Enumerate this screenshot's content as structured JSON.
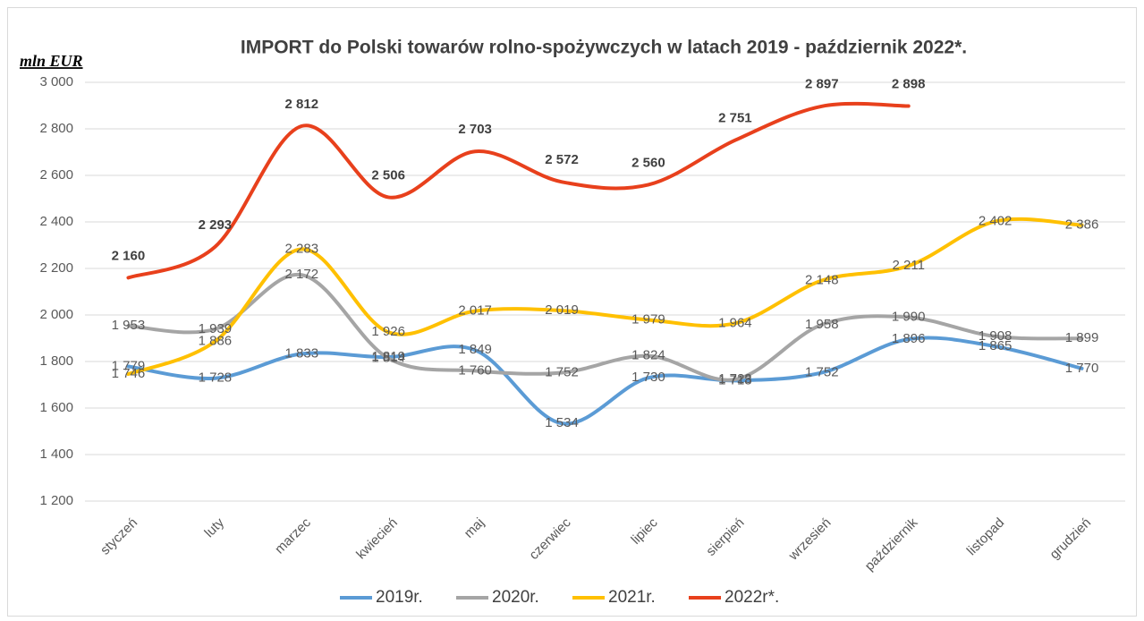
{
  "chart_data": {
    "type": "line",
    "title": "IMPORT do Polski towarów rolno-spożywczych w latach 2019 - październik 2022*.",
    "y_axis_label": "mln EUR",
    "categories": [
      "styczeń",
      "luty",
      "marzec",
      "kwiecień",
      "maj",
      "czerwiec",
      "lipiec",
      "sierpień",
      "wrzesień",
      "październik",
      "listopad",
      "grudzień"
    ],
    "ylim": [
      1200,
      3000
    ],
    "yticks": [
      {
        "value": 1200,
        "label": "1 200"
      },
      {
        "value": 1400,
        "label": "1 400"
      },
      {
        "value": 1600,
        "label": "1 600"
      },
      {
        "value": 1800,
        "label": "1 800"
      },
      {
        "value": 2000,
        "label": "2 000"
      },
      {
        "value": 2200,
        "label": "2 200"
      },
      {
        "value": 2400,
        "label": "2 400"
      },
      {
        "value": 2600,
        "label": "2 600"
      },
      {
        "value": 2800,
        "label": "2 800"
      },
      {
        "value": 3000,
        "label": "3 000"
      }
    ],
    "grid": true,
    "legend": "bottom",
    "series": [
      {
        "name": "2019r.",
        "color": "#5b9bd5",
        "values": [
          1779,
          1728,
          1833,
          1819,
          1849,
          1534,
          1730,
          1718,
          1752,
          1896,
          1865,
          1770
        ],
        "value_labels": [
          "1 779",
          "1 728",
          "1 833",
          "1 819",
          "1 849",
          "1 534",
          "1 730",
          "1 718",
          "1 752",
          "1 896",
          "1 865",
          "1 770"
        ]
      },
      {
        "name": "2020r.",
        "color": "#a5a5a5",
        "values": [
          1953,
          1939,
          2172,
          1814,
          1760,
          1752,
          1824,
          1723,
          1958,
          1990,
          1908,
          1899
        ],
        "value_labels": [
          "1 953",
          "1 939",
          "2 172",
          "1 814",
          "1 760",
          "1 752",
          "1 824",
          "1 723",
          "1 958",
          "1 990",
          "1 908",
          "1 899"
        ]
      },
      {
        "name": "2021r.",
        "color": "#ffc000",
        "values": [
          1746,
          1886,
          2283,
          1926,
          2017,
          2019,
          1979,
          1964,
          2148,
          2211,
          2402,
          2386
        ],
        "value_labels": [
          "1 746",
          "1 886",
          "2 283",
          "1 926",
          "2 017",
          "2 019",
          "1 979",
          "1 964",
          "2 148",
          "2 211",
          "2 402",
          "2 386"
        ]
      },
      {
        "name": "2022r*.",
        "color": "#e8401c",
        "values": [
          2160,
          2293,
          2812,
          2506,
          2703,
          2572,
          2560,
          2751,
          2897,
          2898,
          null,
          null
        ],
        "value_labels": [
          "2 160",
          "2 293",
          "2 812",
          "2 506",
          "2 703",
          "2 572",
          "2 560",
          "2 751",
          "2 897",
          "2 898",
          null,
          null
        ]
      }
    ]
  }
}
